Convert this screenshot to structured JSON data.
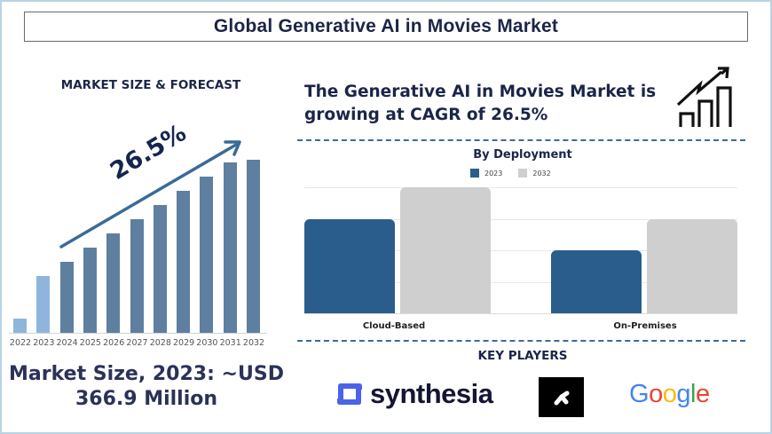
{
  "header": {
    "title": "Global Generative AI in Movies Market"
  },
  "left_panel": {
    "title": "MARKET SIZE & FORECAST",
    "cagr_label": "26.5%",
    "market_size_line1": "Market Size, 2023: ~USD",
    "market_size_line2": "366.9 Million"
  },
  "right_panel": {
    "headline_line1": "The Generative AI in Movies Market is",
    "headline_line2": "growing at CAGR of 26.5%",
    "icon": "growth-chart-icon",
    "key_players_title": "KEY PLAYERS",
    "key_players": [
      {
        "name": "synthesia",
        "icon": "synthesia-logo-icon"
      },
      {
        "name": "Runway",
        "icon": "runway-logo-icon"
      },
      {
        "name": "Google",
        "icon": "google-logo-icon"
      }
    ]
  },
  "colors": {
    "navy": "#1b2548",
    "forecast_bar": "#5e7f9f",
    "history_bar": "#8fb5dd",
    "arrow": "#3a6b98",
    "series_2023": "#2a5d8c",
    "series_2032": "#cfcfcf",
    "synthesia_blue": "#4b63e6"
  },
  "chart_data": [
    {
      "type": "bar",
      "title": "MARKET SIZE & FORECAST",
      "categories": [
        "2022",
        "2023",
        "2024",
        "2025",
        "2026",
        "2027",
        "2028",
        "2029",
        "2030",
        "2031",
        "2032"
      ],
      "values": [
        16,
        64,
        80,
        96,
        112,
        128,
        144,
        160,
        176,
        192,
        195
      ],
      "units": "relative bar height (px, unlabeled axis)",
      "annotation": "26.5%",
      "xlabel": "",
      "ylabel": "",
      "grid": false,
      "highlight_years": [
        "2022",
        "2023"
      ]
    },
    {
      "type": "bar",
      "title": "By Deployment",
      "categories": [
        "Cloud-Based",
        "On-Premises"
      ],
      "series": [
        {
          "name": "2023",
          "values": [
            3,
            2
          ]
        },
        {
          "name": "2032",
          "values": [
            4,
            3
          ]
        }
      ],
      "units": "relative (gridline units, unlabeled axis)",
      "ylim": [
        0,
        4
      ],
      "grid": true,
      "legend_position": "top"
    }
  ]
}
